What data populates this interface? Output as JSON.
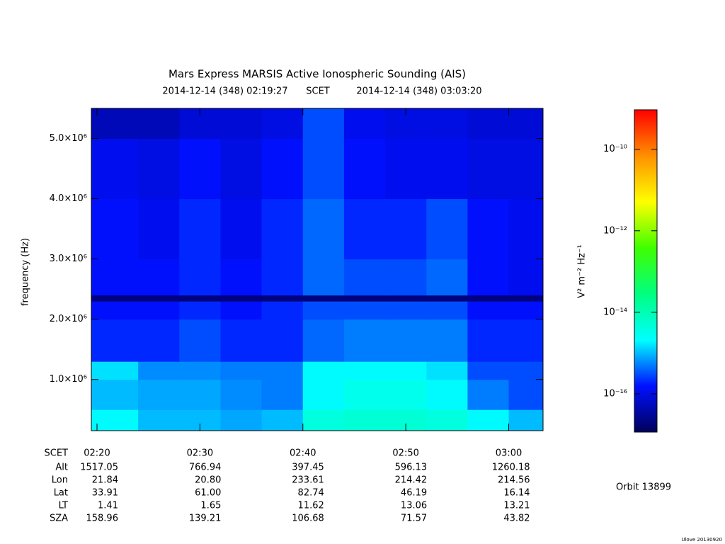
{
  "chart_data": {
    "type": "spectrogram",
    "title": "Mars Express MARSIS Active Ionospheric Sounding (AIS)",
    "subtitle": {
      "start": "2014-12-14 (348) 02:19:27",
      "label": "SCET",
      "end": "2014-12-14 (348) 03:03:20"
    },
    "ylabel": "frequency (Hz)",
    "xlim": [
      "02:19:27",
      "03:03:20"
    ],
    "xticks": [
      "02:20",
      "02:30",
      "02:40",
      "02:50",
      "03:00"
    ],
    "ylim": [
      150000,
      5500000
    ],
    "yticks": [
      {
        "value": 1000000,
        "label": "1.0×10⁶"
      },
      {
        "value": 2000000,
        "label": "2.0×10⁶"
      },
      {
        "value": 3000000,
        "label": "3.0×10⁶"
      },
      {
        "value": 4000000,
        "label": "4.0×10⁶"
      },
      {
        "value": 5000000,
        "label": "5.0×10⁶"
      }
    ],
    "time_bins": [
      "02:19:27",
      "02:24",
      "02:28",
      "02:32",
      "02:36",
      "02:40",
      "02:44",
      "02:48",
      "02:52",
      "02:56",
      "03:00",
      "03:03:20"
    ],
    "freq_bins": [
      150000,
      500000,
      1000000,
      1300000,
      2000000,
      2300000,
      2400000,
      3000000,
      4000000,
      5000000,
      5500000
    ],
    "z": [
      [
        2e-15,
        1e-15,
        1e-15,
        8e-16,
        1e-15,
        4e-15,
        5e-15,
        5e-15,
        4e-15,
        2e-15,
        1e-15
      ],
      [
        1e-15,
        8e-16,
        8e-16,
        6e-16,
        5e-16,
        2e-15,
        3e-15,
        3e-15,
        2e-15,
        5e-16,
        3e-16
      ],
      [
        1.5e-15,
        6e-16,
        6e-16,
        5e-16,
        5e-16,
        2e-15,
        2e-15,
        2e-15,
        1.5e-15,
        3e-16,
        3e-16
      ],
      [
        2e-16,
        2e-16,
        3e-16,
        2e-16,
        2e-16,
        4e-16,
        5e-16,
        5e-16,
        5e-16,
        2e-16,
        2e-16
      ],
      [
        1.5e-16,
        1.5e-16,
        2e-16,
        1.5e-16,
        2e-16,
        3e-16,
        3e-16,
        3e-16,
        3e-16,
        1.5e-16,
        1.5e-16
      ],
      [
        2e-17,
        2e-17,
        2e-17,
        2e-17,
        2e-17,
        2e-17,
        2e-17,
        2e-17,
        2e-17,
        2e-17,
        2e-17
      ],
      [
        1.5e-16,
        1.5e-16,
        2e-16,
        1.5e-16,
        2e-16,
        4e-16,
        3e-16,
        3e-16,
        4e-16,
        1.5e-16,
        1.2e-16
      ],
      [
        1.5e-16,
        1.2e-16,
        2e-16,
        1.2e-16,
        2e-16,
        4e-16,
        2e-16,
        2e-16,
        3e-16,
        1.5e-16,
        1.2e-16
      ],
      [
        1.2e-16,
        1e-16,
        1.5e-16,
        1e-16,
        1.5e-16,
        3e-16,
        1.5e-16,
        1.2e-16,
        1.2e-16,
        1e-16,
        1e-16
      ],
      [
        5e-17,
        5e-17,
        8e-17,
        8e-17,
        1e-16,
        3e-16,
        1.2e-16,
        1e-16,
        1e-16,
        8e-17,
        8e-17
      ]
    ],
    "colormap": [
      "#00005a",
      "#0010ff",
      "#00ffff",
      "#00ff80",
      "#40ff00",
      "#ffff00",
      "#ff9000",
      "#ff0000"
    ],
    "colorbar": {
      "label": "V² m⁻² Hz⁻¹",
      "log": true,
      "lim": [
        1.15e-17,
        9.3e-10
      ],
      "ticks": [
        {
          "value": 1e-16,
          "label": "10⁻¹⁶"
        },
        {
          "value": 1e-14,
          "label": "10⁻¹⁴"
        },
        {
          "value": 1e-12,
          "label": "10⁻¹²"
        },
        {
          "value": 1e-10,
          "label": "10⁻¹⁰"
        }
      ]
    },
    "ephemeris": [
      {
        "name": "SCET"
      },
      {
        "name": "Alt",
        "values": [
          "1517.05",
          "766.94",
          "397.45",
          "596.13",
          "1260.18"
        ]
      },
      {
        "name": "Lon",
        "values": [
          "21.84",
          "20.80",
          "233.61",
          "214.42",
          "214.56"
        ]
      },
      {
        "name": "Lat",
        "values": [
          "33.91",
          "61.00",
          "82.74",
          "46.19",
          "16.14"
        ]
      },
      {
        "name": "LT",
        "values": [
          "1.41",
          "1.65",
          "11.62",
          "13.06",
          "13.21"
        ]
      },
      {
        "name": "SZA",
        "values": [
          "158.96",
          "139.21",
          "106.68",
          "71.57",
          "43.82"
        ]
      }
    ],
    "orbit": "Orbit 13899",
    "footer": "Ulove 20130920"
  }
}
